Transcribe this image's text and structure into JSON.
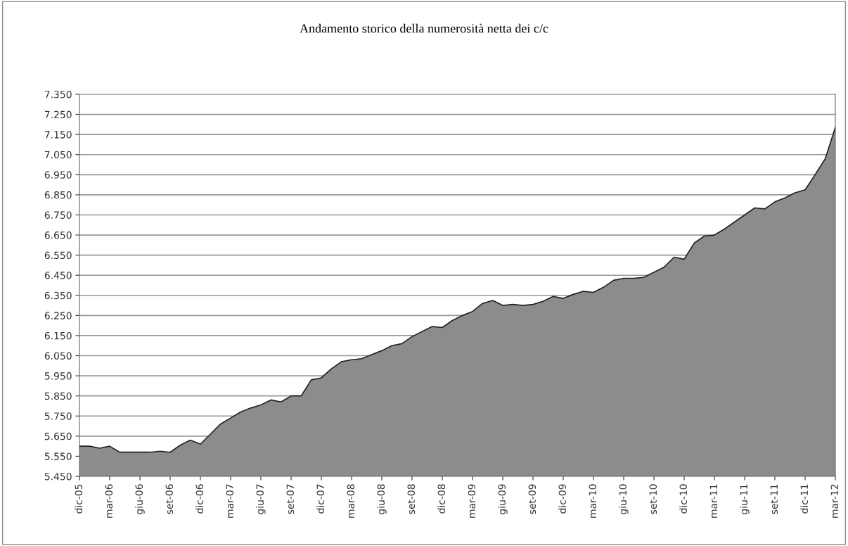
{
  "chart_data": {
    "type": "area",
    "title": "Andamento storico della numerosità netta dei c/c",
    "categories": [
      "dic-05",
      null,
      null,
      "mar-06",
      null,
      null,
      "giu-06",
      null,
      null,
      "set-06",
      null,
      null,
      "dic-06",
      null,
      null,
      "mar-07",
      null,
      null,
      "giu-07",
      null,
      null,
      "set-07",
      null,
      null,
      "dic-07",
      null,
      null,
      "mar-08",
      null,
      null,
      "giu-08",
      null,
      null,
      "set-08",
      null,
      null,
      "dic-08",
      null,
      null,
      "mar-09",
      null,
      null,
      "giu-09",
      null,
      null,
      "set-09",
      null,
      null,
      "dic-09",
      null,
      null,
      "mar-10",
      null,
      null,
      "giu-10",
      null,
      null,
      "set-10",
      null,
      null,
      "dic-10",
      null,
      null,
      "mar-11",
      null,
      null,
      "giu-11",
      null,
      null,
      "set-11",
      null,
      null,
      "dic-11",
      null,
      null,
      "mar-12"
    ],
    "series": [
      {
        "color": "#8c8c8c",
        "values": [
          5600,
          5600,
          5590,
          5600,
          5570,
          5570,
          5570,
          5570,
          5575,
          5570,
          5605,
          5630,
          5610,
          5660,
          5710,
          5740,
          5770,
          5790,
          5805,
          5830,
          5820,
          5850,
          5850,
          5930,
          5940,
          5985,
          6020,
          6030,
          6035,
          6055,
          6075,
          6100,
          6110,
          6145,
          6170,
          6195,
          6190,
          6225,
          6250,
          6270,
          6310,
          6325,
          6300,
          6305,
          6300,
          6305,
          6320,
          6345,
          6335,
          6355,
          6370,
          6365,
          6390,
          6425,
          6435,
          6435,
          6440,
          6465,
          6490,
          6540,
          6530,
          6610,
          6645,
          6650,
          6680,
          6715,
          6750,
          6785,
          6780,
          6815,
          6835,
          6860,
          6875,
          6950,
          7030,
          7185
        ]
      }
    ],
    "ylim": [
      5450,
      7350
    ],
    "yticks": [
      {
        "value": 5450,
        "label": "5.450"
      },
      {
        "value": 5550,
        "label": "5.550"
      },
      {
        "value": 5650,
        "label": "5.650"
      },
      {
        "value": 5750,
        "label": "5.750"
      },
      {
        "value": 5850,
        "label": "5.850"
      },
      {
        "value": 5950,
        "label": "5.950"
      },
      {
        "value": 6050,
        "label": "6.050"
      },
      {
        "value": 6150,
        "label": "6.150"
      },
      {
        "value": 6250,
        "label": "6.250"
      },
      {
        "value": 6350,
        "label": "6.350"
      },
      {
        "value": 6450,
        "label": "6.450"
      },
      {
        "value": 6550,
        "label": "6.550"
      },
      {
        "value": 6650,
        "label": "6.650"
      },
      {
        "value": 6750,
        "label": "6.750"
      },
      {
        "value": 6850,
        "label": "6.850"
      },
      {
        "value": 6950,
        "label": "6.950"
      },
      {
        "value": 7050,
        "label": "7.050"
      },
      {
        "value": 7150,
        "label": "7.150"
      },
      {
        "value": 7250,
        "label": "7.250"
      },
      {
        "value": 7350,
        "label": "7.350"
      }
    ],
    "grid": "y"
  }
}
